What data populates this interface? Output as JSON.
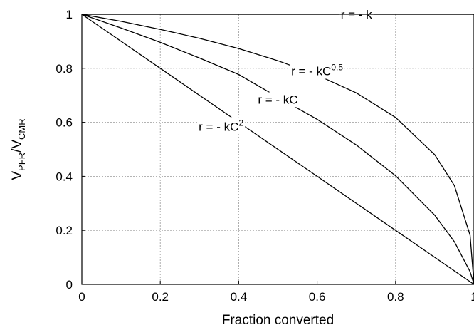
{
  "chart_data": {
    "type": "line",
    "xlabel": "Fraction converted",
    "ylabel": {
      "main": "V",
      "sub1": "PFR",
      "sep": "/V",
      "sub2": "CMR"
    },
    "xlim": [
      0,
      1
    ],
    "ylim": [
      0,
      1
    ],
    "grid": true,
    "x_ticks": [
      {
        "value": 0,
        "label": "0"
      },
      {
        "value": 0.2,
        "label": "0.2"
      },
      {
        "value": 0.4,
        "label": "0.4"
      },
      {
        "value": 0.6,
        "label": "0.6"
      },
      {
        "value": 0.8,
        "label": "0.8"
      },
      {
        "value": 1,
        "label": "1"
      }
    ],
    "y_ticks": [
      {
        "value": 0,
        "label": "0"
      },
      {
        "value": 0.2,
        "label": "0.2"
      },
      {
        "value": 0.4,
        "label": "0.4"
      },
      {
        "value": 0.6,
        "label": "0.6"
      },
      {
        "value": 0.8,
        "label": "0.8"
      },
      {
        "value": 1,
        "label": "1"
      }
    ],
    "series": [
      {
        "name": "r = - k",
        "label_base": "r = - k",
        "label_sup": "",
        "label_at": [
          0.7,
          1.0
        ],
        "x": [
          0,
          0.2,
          0.4,
          0.6,
          0.8,
          1.0
        ],
        "y": [
          1,
          1,
          1,
          1,
          1,
          1
        ]
      },
      {
        "name": "r = - kC0.5",
        "label_base": "r = - kC",
        "label_sup": "0.5",
        "label_at": [
          0.6,
          0.79
        ],
        "x": [
          0,
          0.1,
          0.2,
          0.3,
          0.4,
          0.5,
          0.6,
          0.7,
          0.8,
          0.9,
          0.95,
          0.99,
          1.0
        ],
        "y": [
          1,
          0.974,
          0.944,
          0.911,
          0.873,
          0.828,
          0.775,
          0.709,
          0.618,
          0.48,
          0.366,
          0.182,
          0
        ]
      },
      {
        "name": "r = - kC",
        "label_base": "r = - kC",
        "label_sup": "",
        "label_at": [
          0.5,
          0.685
        ],
        "x": [
          0,
          0.1,
          0.2,
          0.3,
          0.4,
          0.5,
          0.6,
          0.7,
          0.8,
          0.9,
          0.95,
          0.99,
          1.0
        ],
        "y": [
          1,
          0.949,
          0.896,
          0.838,
          0.777,
          0.693,
          0.611,
          0.516,
          0.402,
          0.256,
          0.158,
          0.047,
          0
        ]
      },
      {
        "name": "r = - kC2",
        "label_base": "r = - kC",
        "label_sup": "2",
        "label_at": [
          0.355,
          0.585
        ],
        "x": [
          0,
          0.2,
          0.4,
          0.6,
          0.8,
          1.0
        ],
        "y": [
          1,
          0.8,
          0.6,
          0.4,
          0.2,
          0
        ]
      }
    ]
  }
}
